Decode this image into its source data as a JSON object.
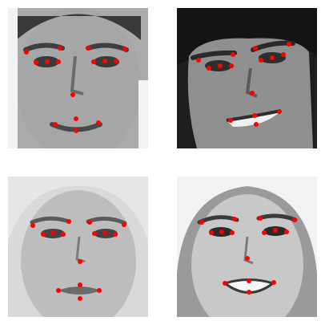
{
  "figure": {
    "panels": [
      {
        "id": "face-1",
        "style": "dark-background-male",
        "colors": {
          "background": "#2b2b2b",
          "skin": "#a6a6a6",
          "hair": "#3a3a3a",
          "feature": "#4a4a4a"
        },
        "marker_color": "#ff0000"
      },
      {
        "id": "face-2",
        "style": "tilted-smiling-male",
        "colors": {
          "background": "#1e1e1e",
          "skin": "#8f8f8f",
          "hair": "#1a1a1a",
          "feature": "#2e2e2e"
        },
        "marker_color": "#ff0000"
      },
      {
        "id": "face-3",
        "style": "light-hair-female",
        "colors": {
          "background": "#d9d9d9",
          "skin": "#bdbdbd",
          "hair": "#e6e6e6",
          "feature": "#5a5a5a"
        },
        "marker_color": "#ff0000"
      },
      {
        "id": "face-4",
        "style": "smiling-female",
        "colors": {
          "background": "#9a9a9a",
          "skin": "#c8c8c8",
          "hair": "#f2f2f2",
          "feature": "#3a3a3a"
        },
        "marker_color": "#ff0000"
      }
    ]
  }
}
